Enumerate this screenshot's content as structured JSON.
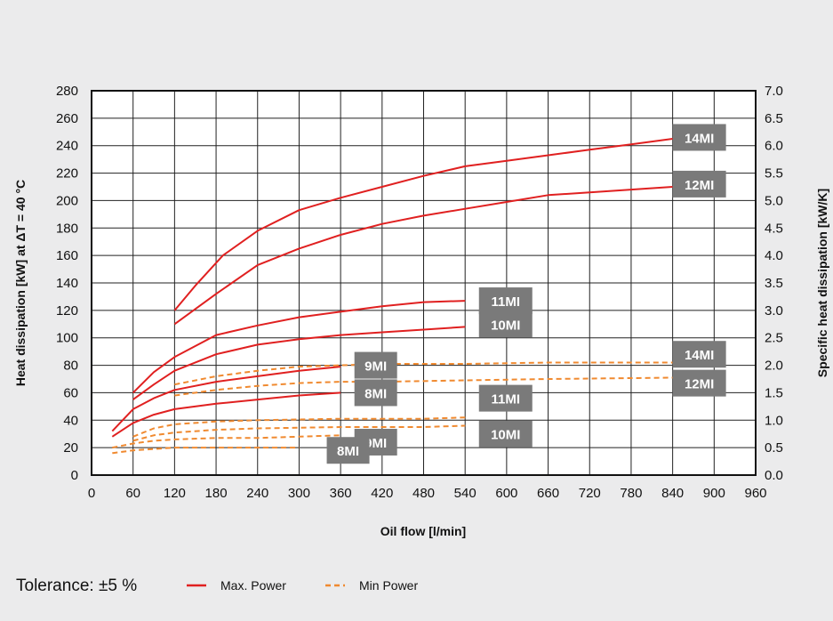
{
  "chart_data": {
    "type": "line",
    "xlabel": "Oil flow [l/min]",
    "ylabel": "Heat dissipation [kW] at ΔT = 40 °C",
    "y2label": "Specific heat dissipation [kW/K]",
    "xlim": [
      0,
      960
    ],
    "ylim": [
      0,
      280
    ],
    "y2lim": [
      0,
      7.0
    ],
    "x_ticks": [
      "0",
      "60",
      "120",
      "180",
      "240",
      "300",
      "360",
      "420",
      "480",
      "540",
      "600",
      "660",
      "720",
      "780",
      "840",
      "900",
      "960"
    ],
    "y_ticks": [
      "0",
      "20",
      "40",
      "60",
      "80",
      "100",
      "120",
      "140",
      "160",
      "180",
      "200",
      "220",
      "240",
      "260",
      "280"
    ],
    "y2_ticks": [
      "0.0",
      "0.5",
      "1.0",
      "1.5",
      "2.0",
      "2.5",
      "3.0",
      "3.5",
      "4.0",
      "4.5",
      "5.0",
      "5.5",
      "6.0",
      "6.5",
      "7.0"
    ],
    "grid": true,
    "colors": {
      "max": "#e02020",
      "min": "#f08a30",
      "tag_bg": "#7a7a7a"
    },
    "series": [
      {
        "name": "14MI",
        "kind": "max",
        "tag": "14MI",
        "tag_at": [
          840,
          246
        ],
        "points": [
          [
            120,
            120
          ],
          [
            150,
            138
          ],
          [
            190,
            160
          ],
          [
            240,
            178
          ],
          [
            300,
            193
          ],
          [
            360,
            202
          ],
          [
            420,
            210
          ],
          [
            480,
            218
          ],
          [
            540,
            225
          ],
          [
            600,
            229
          ],
          [
            660,
            233
          ],
          [
            720,
            237
          ],
          [
            780,
            241
          ],
          [
            840,
            245
          ]
        ]
      },
      {
        "name": "12MI",
        "kind": "max",
        "tag": "12MI",
        "tag_at": [
          840,
          212
        ],
        "points": [
          [
            120,
            110
          ],
          [
            180,
            132
          ],
          [
            240,
            153
          ],
          [
            300,
            165
          ],
          [
            360,
            175
          ],
          [
            420,
            183
          ],
          [
            480,
            189
          ],
          [
            540,
            194
          ],
          [
            600,
            199
          ],
          [
            660,
            204
          ],
          [
            720,
            206
          ],
          [
            780,
            208
          ],
          [
            840,
            210
          ]
        ]
      },
      {
        "name": "11MI",
        "kind": "max",
        "tag": "11MI",
        "tag_at": [
          560,
          127
        ],
        "points": [
          [
            60,
            60
          ],
          [
            90,
            75
          ],
          [
            120,
            86
          ],
          [
            180,
            102
          ],
          [
            240,
            109
          ],
          [
            300,
            115
          ],
          [
            360,
            119
          ],
          [
            420,
            123
          ],
          [
            480,
            126
          ],
          [
            540,
            127
          ]
        ]
      },
      {
        "name": "10MI",
        "kind": "max",
        "tag": "10MI",
        "tag_at": [
          560,
          110
        ],
        "points": [
          [
            60,
            55
          ],
          [
            90,
            66
          ],
          [
            120,
            76
          ],
          [
            180,
            88
          ],
          [
            240,
            95
          ],
          [
            300,
            99
          ],
          [
            360,
            102
          ],
          [
            420,
            104
          ],
          [
            480,
            106
          ],
          [
            540,
            108
          ]
        ]
      },
      {
        "name": "9MI",
        "kind": "max",
        "tag": "9MI",
        "tag_at": [
          380,
          80
        ],
        "points": [
          [
            30,
            32
          ],
          [
            60,
            48
          ],
          [
            90,
            56
          ],
          [
            120,
            62
          ],
          [
            180,
            68
          ],
          [
            240,
            72
          ],
          [
            300,
            76
          ],
          [
            360,
            79
          ]
        ]
      },
      {
        "name": "8MI",
        "kind": "max",
        "tag": "8MI",
        "tag_at": [
          380,
          60
        ],
        "points": [
          [
            30,
            28
          ],
          [
            60,
            38
          ],
          [
            90,
            44
          ],
          [
            120,
            48
          ],
          [
            180,
            52
          ],
          [
            240,
            55
          ],
          [
            300,
            58
          ],
          [
            360,
            60
          ]
        ]
      },
      {
        "name": "14MI",
        "kind": "min",
        "tag": "14MI",
        "tag_at": [
          840,
          88
        ],
        "points": [
          [
            120,
            66
          ],
          [
            180,
            72
          ],
          [
            240,
            76
          ],
          [
            300,
            79
          ],
          [
            360,
            80
          ],
          [
            420,
            81
          ],
          [
            540,
            81
          ],
          [
            660,
            82
          ],
          [
            840,
            82
          ]
        ]
      },
      {
        "name": "12MI",
        "kind": "min",
        "tag": "12MI",
        "tag_at": [
          840,
          67
        ],
        "points": [
          [
            120,
            58
          ],
          [
            180,
            62
          ],
          [
            240,
            65
          ],
          [
            300,
            67
          ],
          [
            360,
            68
          ],
          [
            420,
            68
          ],
          [
            540,
            69
          ],
          [
            660,
            70
          ],
          [
            840,
            71
          ]
        ]
      },
      {
        "name": "11MI",
        "kind": "min",
        "tag": "11MI",
        "tag_at": [
          560,
          56
        ],
        "points": [
          [
            60,
            28
          ],
          [
            90,
            34
          ],
          [
            120,
            37
          ],
          [
            180,
            39
          ],
          [
            240,
            40
          ],
          [
            360,
            41
          ],
          [
            480,
            41
          ],
          [
            540,
            42
          ]
        ]
      },
      {
        "name": "10MI",
        "kind": "min",
        "tag": "10MI",
        "tag_at": [
          560,
          30
        ],
        "points": [
          [
            60,
            25
          ],
          [
            90,
            29
          ],
          [
            120,
            31
          ],
          [
            180,
            33
          ],
          [
            240,
            34
          ],
          [
            360,
            35
          ],
          [
            480,
            35
          ],
          [
            540,
            36
          ]
        ]
      },
      {
        "name": "9MI",
        "kind": "min",
        "tag": "9MI",
        "tag_at": [
          380,
          24
        ],
        "points": [
          [
            30,
            20
          ],
          [
            60,
            23
          ],
          [
            90,
            25
          ],
          [
            120,
            26
          ],
          [
            180,
            27
          ],
          [
            240,
            27
          ],
          [
            300,
            28
          ],
          [
            360,
            29
          ]
        ]
      },
      {
        "name": "8MI",
        "kind": "min",
        "tag": "8MI",
        "tag_at": [
          340,
          18
        ],
        "points": [
          [
            30,
            16
          ],
          [
            60,
            18
          ],
          [
            90,
            19
          ],
          [
            120,
            20
          ],
          [
            180,
            20
          ],
          [
            240,
            20
          ],
          [
            300,
            20
          ]
        ]
      }
    ],
    "legend": {
      "tolerance": "Tolerance: ±5 %",
      "max_label": "Max. Power",
      "min_label": "Min Power",
      "placement": "bottom-left"
    }
  }
}
